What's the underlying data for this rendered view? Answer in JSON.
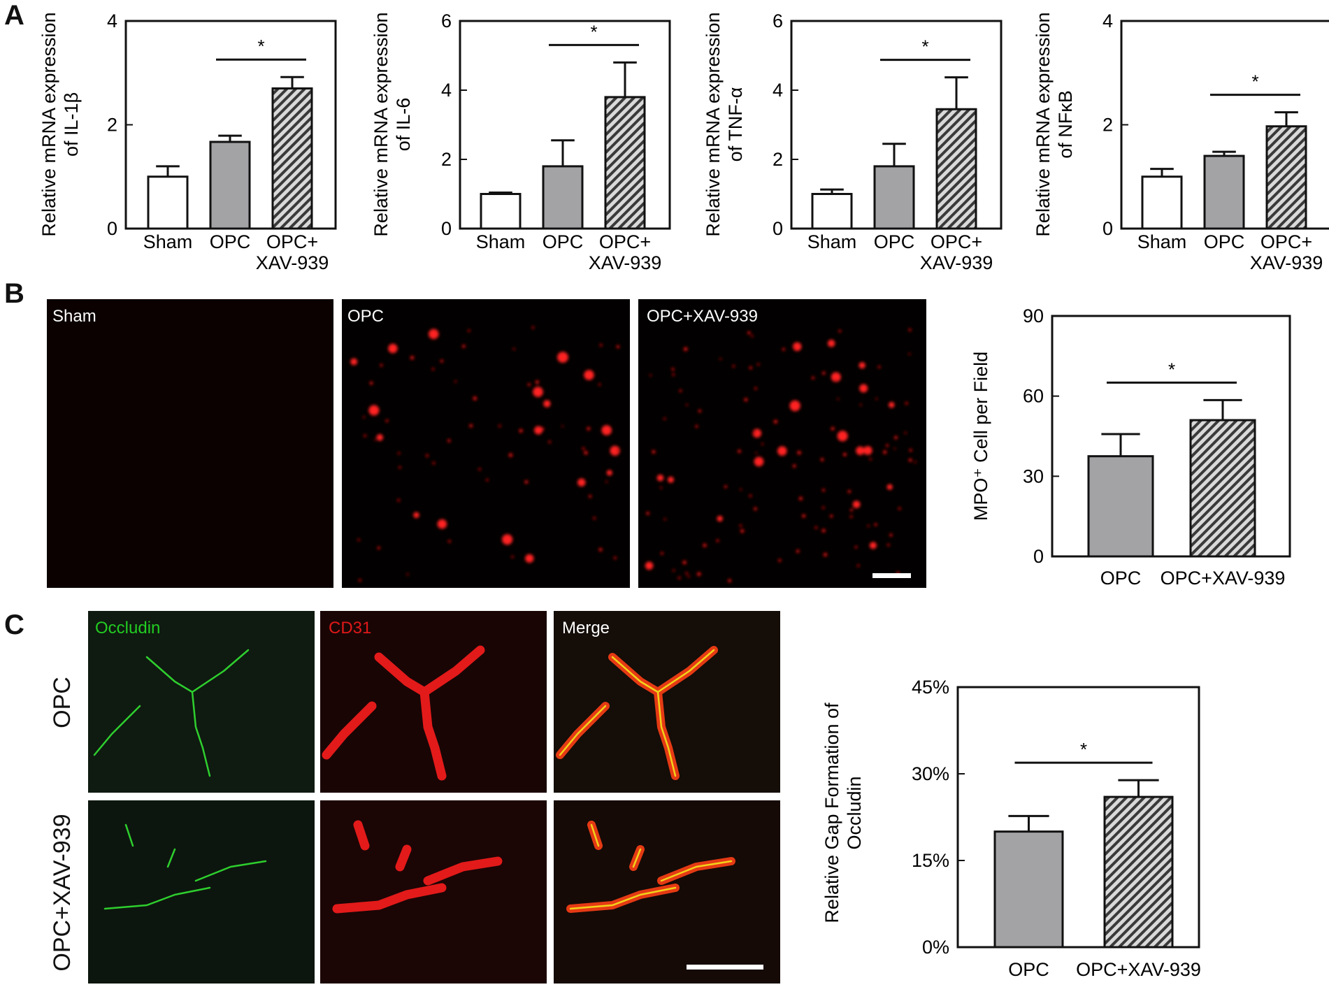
{
  "panels": {
    "A": "A",
    "B": "B",
    "C": "C"
  },
  "images_b": [
    {
      "label": "Sham"
    },
    {
      "label": "OPC"
    },
    {
      "label": "OPC+XAV-939"
    }
  ],
  "images_c": {
    "columns": [
      {
        "label": "Occludin",
        "color": "#22cc22"
      },
      {
        "label": "CD31",
        "color": "#e01818"
      },
      {
        "label": "Merge",
        "color": "#ffffff"
      }
    ],
    "rows": [
      "OPC",
      "OPC+XAV-939"
    ]
  },
  "chart_data": [
    {
      "type": "bar",
      "panel": "A",
      "categories": [
        "Sham",
        "OPC",
        "OPC+\nXAV-939"
      ],
      "values": [
        1.0,
        1.67,
        2.7
      ],
      "errors": [
        0.2,
        0.12,
        0.22
      ],
      "ylabel": "Relative mRNA expression\nof IL-1β",
      "ylim": [
        0,
        4
      ],
      "yticks": [
        0,
        2,
        4
      ],
      "significance": [
        {
          "between": [
            1,
            2
          ],
          "label": "*"
        }
      ],
      "fills": [
        "white",
        "gray",
        "hatch"
      ]
    },
    {
      "type": "bar",
      "panel": "A",
      "categories": [
        "Sham",
        "OPC",
        "OPC+\nXAV-939"
      ],
      "values": [
        1.0,
        1.8,
        3.8
      ],
      "errors": [
        0.04,
        0.75,
        1.0
      ],
      "ylabel": "Relative mRNA expression\nof IL-6",
      "ylim": [
        0,
        6
      ],
      "yticks": [
        0,
        2,
        4,
        6
      ],
      "significance": [
        {
          "between": [
            1,
            2
          ],
          "label": "*"
        }
      ],
      "fills": [
        "white",
        "gray",
        "hatch"
      ]
    },
    {
      "type": "bar",
      "panel": "A",
      "categories": [
        "Sham",
        "OPC",
        "OPC+\nXAV-939"
      ],
      "values": [
        1.0,
        1.8,
        3.45
      ],
      "errors": [
        0.13,
        0.65,
        0.92
      ],
      "ylabel": "Relative mRNA expression\nof TNF-α",
      "ylim": [
        0,
        6
      ],
      "yticks": [
        0,
        2,
        4,
        6
      ],
      "significance": [
        {
          "between": [
            1,
            2
          ],
          "label": "*"
        }
      ],
      "fills": [
        "white",
        "gray",
        "hatch"
      ]
    },
    {
      "type": "bar",
      "panel": "A",
      "categories": [
        "Sham",
        "OPC",
        "OPC+\nXAV-939"
      ],
      "values": [
        1.0,
        1.4,
        1.97
      ],
      "errors": [
        0.15,
        0.08,
        0.27
      ],
      "ylabel": "Relative mRNA expression\nof NFκB",
      "ylim": [
        0,
        4
      ],
      "yticks": [
        0,
        2,
        4
      ],
      "significance": [
        {
          "between": [
            1,
            2
          ],
          "label": "*"
        }
      ],
      "fills": [
        "white",
        "gray",
        "hatch"
      ]
    },
    {
      "type": "bar",
      "panel": "B",
      "categories": [
        "OPC",
        "OPC+XAV-939"
      ],
      "values": [
        37.5,
        51
      ],
      "errors": [
        8.3,
        7.5
      ],
      "ylabel": "MPO⁺ Cell per Field",
      "ylim": [
        0,
        90
      ],
      "yticks": [
        0,
        30,
        60,
        90
      ],
      "significance": [
        {
          "between": [
            0,
            1
          ],
          "label": "*"
        }
      ],
      "fills": [
        "gray",
        "hatch"
      ]
    },
    {
      "type": "bar",
      "panel": "C",
      "categories": [
        "OPC",
        "OPC+XAV-939"
      ],
      "values": [
        0.2,
        0.26
      ],
      "errors": [
        0.027,
        0.029
      ],
      "ylabel": "Relative Gap Formation of\nOccludin",
      "ylim": [
        0,
        0.45
      ],
      "yticks": [
        0,
        0.15,
        0.3,
        0.45
      ],
      "ytick_labels": [
        "0%",
        "15%",
        "30%",
        "45%"
      ],
      "significance": [
        {
          "between": [
            0,
            1
          ],
          "label": "*"
        }
      ],
      "fills": [
        "gray",
        "hatch"
      ]
    }
  ]
}
